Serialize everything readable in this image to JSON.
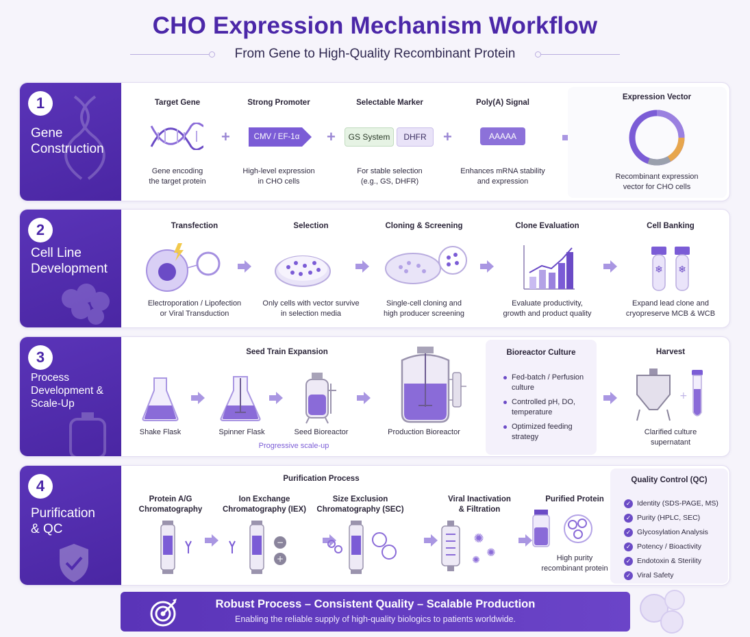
{
  "header": {
    "title": "CHO Expression Mechanism Workflow",
    "subtitle": "From Gene to High-Quality Recombinant Protein"
  },
  "colors": {
    "primary": "#4b27a8",
    "accent": "#7b5cd6",
    "light": "#f4f1fb"
  },
  "stages": [
    {
      "number": "1",
      "label_lines": [
        "Gene",
        "Construction"
      ],
      "steps": [
        {
          "title": "Target Gene",
          "icon": "dna-icon",
          "desc": [
            "Gene encoding",
            "the target protein"
          ]
        },
        {
          "title": "Strong Promoter",
          "tag": "CMV / EF-1α",
          "desc": [
            "High-level expression",
            "in CHO cells"
          ]
        },
        {
          "title": "Selectable Marker",
          "tags": [
            "GS System",
            "DHFR"
          ],
          "desc": [
            "For stable selection",
            "(e.g., GS, DHFR)"
          ]
        },
        {
          "title": "Poly(A) Signal",
          "tag": "AAAAA",
          "desc": [
            "Enhances mRNA stability",
            "and expression"
          ]
        },
        {
          "title": "Expression Vector",
          "icon": "plasmid-icon",
          "desc": [
            "Recombinant expression",
            "vector for CHO cells"
          ]
        }
      ]
    },
    {
      "number": "2",
      "label_lines": [
        "Cell Line",
        "Development"
      ],
      "steps": [
        {
          "title": "Transfection",
          "icon": "cell-transfection-icon",
          "desc": [
            "Electroporation / Lipofection",
            "or Viral Transduction"
          ]
        },
        {
          "title": "Selection",
          "icon": "petri-dish-icon",
          "desc": [
            "Only cells with vector survive",
            "in selection media"
          ]
        },
        {
          "title": "Cloning & Screening",
          "icon": "cloning-dish-icon",
          "desc": [
            "Single-cell cloning and",
            "high producer screening"
          ]
        },
        {
          "title": "Clone Evaluation",
          "icon": "bar-chart-icon",
          "desc": [
            "Evaluate productivity,",
            "growth and product quality"
          ]
        },
        {
          "title": "Cell Banking",
          "icon": "cryovial-icon",
          "desc": [
            "Expand lead clone and",
            "cryopreserve MCB & WCB"
          ]
        }
      ]
    },
    {
      "number": "3",
      "label_lines": [
        "Process",
        "Development &",
        "Scale-Up"
      ],
      "seed_train_title": "Seed Train Expansion",
      "steps": [
        {
          "label": "Shake Flask",
          "icon": "shake-flask-icon"
        },
        {
          "label": "Spinner Flask",
          "icon": "spinner-flask-icon"
        },
        {
          "label": "Seed Bioreactor",
          "icon": "seed-bioreactor-icon"
        },
        {
          "label": "Production Bioreactor",
          "icon": "production-bioreactor-icon"
        }
      ],
      "scale_note": "Progressive scale-up",
      "bioreactor_culture": {
        "title": "Bioreactor Culture",
        "bullets": [
          [
            "Fed-batch / Perfusion",
            "culture"
          ],
          [
            "Controlled pH, DO,",
            "temperature"
          ],
          [
            "Optimized feeding",
            "strategy"
          ]
        ]
      },
      "harvest": {
        "title": "Harvest",
        "desc": [
          "Clarified culture",
          "supernatant"
        ]
      }
    },
    {
      "number": "4",
      "label_lines": [
        "Purification",
        "& QC"
      ],
      "purification_title": "Purification Process",
      "steps": [
        {
          "title": [
            "Protein A/G",
            "Chromatography"
          ],
          "icon": "column-icon"
        },
        {
          "title": [
            "Ion Exchange",
            "Chromatography (IEX)"
          ],
          "icon": "column-icon"
        },
        {
          "title": [
            "Size Exclusion",
            "Chromatography (SEC)"
          ],
          "icon": "column-icon"
        },
        {
          "title": [
            "Viral Inactivation",
            "& Filtration"
          ],
          "icon": "filter-icon"
        },
        {
          "title": [
            "Purified Protein"
          ],
          "icon": "vial-icon",
          "desc": [
            "High purity",
            "recombinant protein"
          ]
        }
      ],
      "qc": {
        "title": "Quality Control (QC)",
        "items": [
          "Identity (SDS-PAGE, MS)",
          "Purity (HPLC, SEC)",
          "Glycosylation Analysis",
          "Potency / Bioactivity",
          "Endotoxin & Sterility",
          "Viral Safety"
        ]
      }
    }
  ],
  "banner": {
    "headline": "Robust Process – Consistent Quality – Scalable Production",
    "tagline": "Enabling the reliable supply of high-quality biologics to patients worldwide."
  }
}
